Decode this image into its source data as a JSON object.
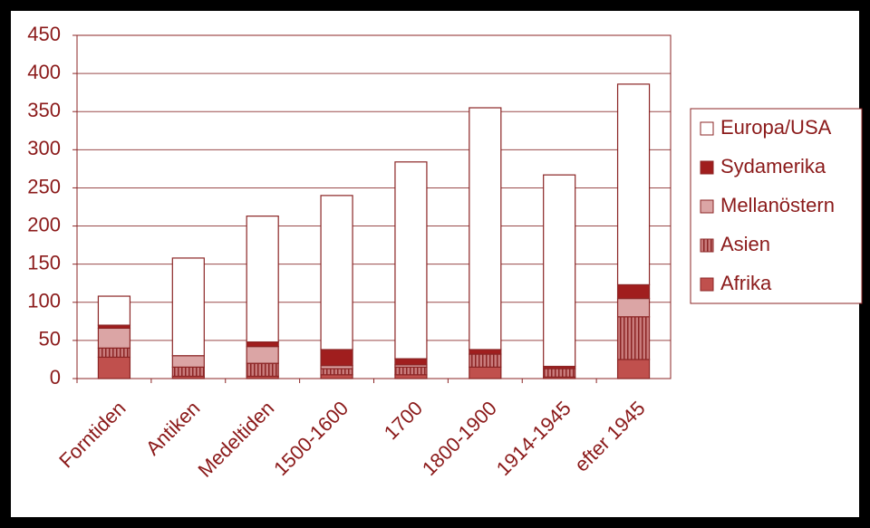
{
  "chart_data": {
    "type": "stacked-bar",
    "categories": [
      "Forntiden",
      "Antiken",
      "Medeltiden",
      "1500-1600",
      "1700",
      "1800-1900",
      "1914-1945",
      "efter 1945"
    ],
    "series": [
      {
        "name": "Afrika",
        "color": "#c0504d",
        "values": [
          28,
          3,
          3,
          5,
          5,
          15,
          2,
          25
        ]
      },
      {
        "name": "Asien",
        "color": "#c97b7b",
        "pattern": "vertical-stripes",
        "values": [
          12,
          12,
          17,
          8,
          10,
          17,
          11,
          56
        ]
      },
      {
        "name": "Mellanöstern",
        "color": "#dba5a5",
        "values": [
          26,
          15,
          22,
          4,
          3,
          0,
          0,
          24
        ]
      },
      {
        "name": "Sydamerika",
        "color": "#a01e1e",
        "values": [
          4,
          0,
          6,
          21,
          8,
          6,
          3,
          18
        ]
      },
      {
        "name": "Europa/USA",
        "color": "#ffffff",
        "values": [
          38,
          128,
          165,
          202,
          258,
          317,
          251,
          263
        ]
      }
    ],
    "ylim": [
      0,
      450
    ],
    "yticks": [
      0,
      50,
      100,
      150,
      200,
      250,
      300,
      350,
      400,
      450
    ],
    "grid": true
  }
}
